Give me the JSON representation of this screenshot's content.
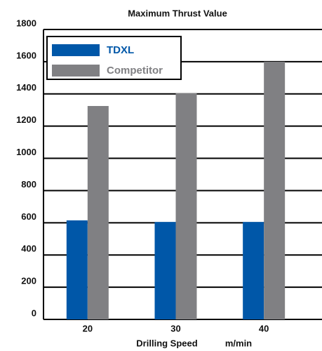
{
  "chart_data": {
    "type": "bar",
    "title": "Maximum Thrust Value",
    "x_label": "Drilling Speed",
    "x_unit": "m/min",
    "categories": [
      "20",
      "30",
      "40"
    ],
    "series": [
      {
        "name": "TDXL",
        "color": "#0057a8",
        "values": [
          615,
          605,
          605
        ]
      },
      {
        "name": "Competitor",
        "color": "#808083",
        "values": [
          1325,
          1405,
          1600
        ]
      }
    ],
    "ylim": [
      0,
      1800
    ],
    "yticks": [
      0,
      200,
      400,
      600,
      800,
      1000,
      1200,
      1400,
      1600,
      1800
    ],
    "grid": true,
    "legend": "upper left"
  }
}
